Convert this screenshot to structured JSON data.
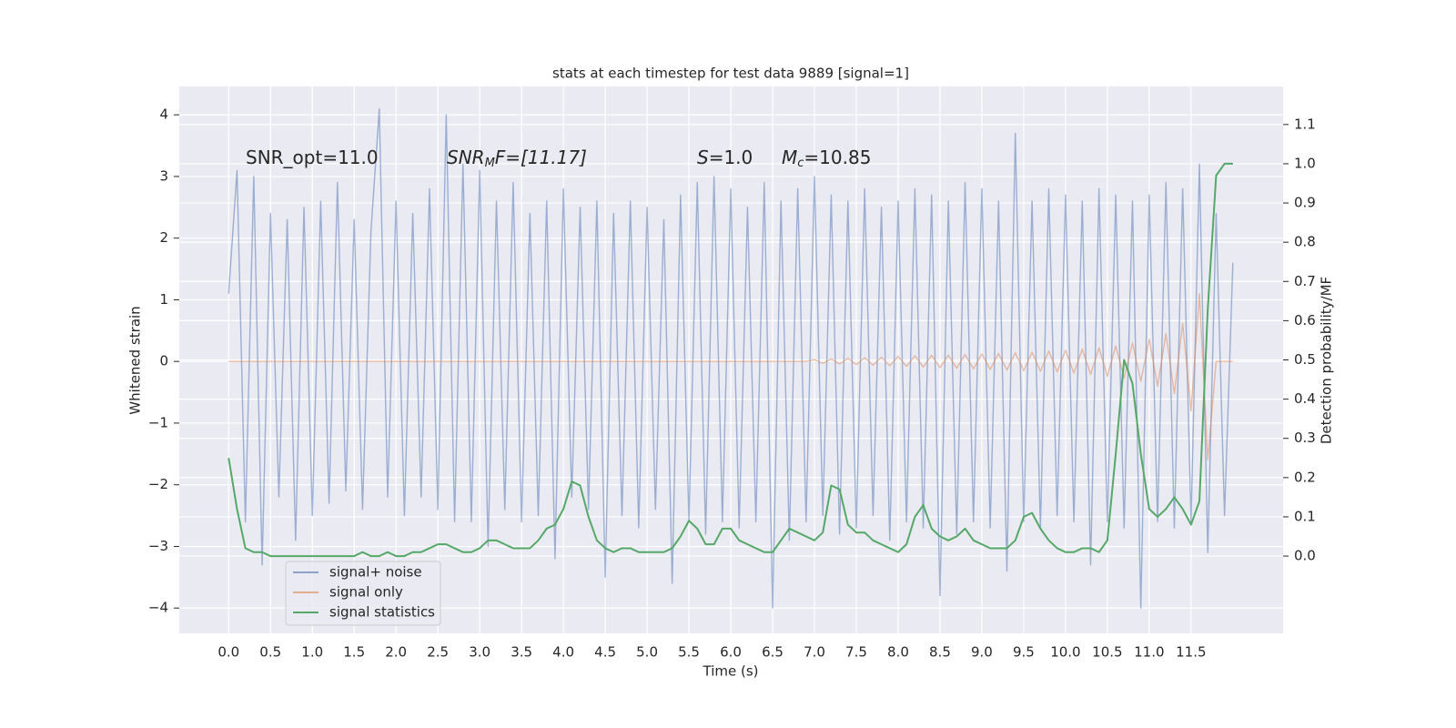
{
  "chart_data": {
    "type": "line",
    "title": "stats at each timestep for test data 9889 [signal=1]",
    "xlabel": "Time (s)",
    "ylabel": "Whitened strain",
    "y2label": "Detection probability/MF",
    "annotations": [
      [
        "SNR_opt=11.0"
      ],
      [
        "SNR",
        "M",
        "F=[11.17]"
      ],
      [
        "S",
        "=1.0"
      ],
      [
        "M",
        "c",
        "=10.85"
      ]
    ],
    "legend": "lower left",
    "grid": true,
    "background": "#eaeaf2",
    "xlim": [
      -0.59,
      12.6
    ],
    "xticks": [
      {
        "value": 0,
        "label": "0.0"
      },
      0.5,
      {
        "value": 1,
        "label": "1.0"
      },
      1.5,
      {
        "value": 2,
        "label": "2.0"
      },
      2.5,
      {
        "value": 3,
        "label": "3.0"
      },
      3.5,
      {
        "value": 4,
        "label": "4.0"
      },
      4.5,
      {
        "value": 5,
        "label": "5.0"
      },
      5.5,
      {
        "value": 6,
        "label": "6.0"
      },
      6.5,
      {
        "value": 7,
        "label": "7.0"
      },
      7.5,
      {
        "value": 8,
        "label": "8.0"
      },
      8.5,
      {
        "value": 9,
        "label": "9.0"
      },
      9.5,
      {
        "value": 10,
        "label": "10.0"
      },
      10.5,
      {
        "value": 11,
        "label": "11.0"
      },
      11.5
    ],
    "ylim": [
      -4.41,
      4.46
    ],
    "yticks": [
      {
        "value": -4,
        "label": "−4"
      },
      {
        "value": -3,
        "label": "−3"
      },
      {
        "value": -2,
        "label": "−2"
      },
      {
        "value": -1,
        "label": "−1"
      },
      0,
      1,
      2,
      3,
      4
    ],
    "y2lim": [
      -0.197,
      1.197
    ],
    "y2ticks": [
      {
        "value": 0,
        "label": "0.0"
      },
      0.1,
      0.2,
      0.3,
      0.4,
      0.5,
      0.6,
      0.7,
      0.8,
      0.9,
      {
        "value": 1,
        "label": "1.0"
      },
      1.1
    ],
    "x": [
      0.0,
      0.1,
      0.2,
      0.3,
      0.4,
      0.5,
      0.6,
      0.7,
      0.8,
      0.9,
      1.0,
      1.1,
      1.2,
      1.3,
      1.4,
      1.5,
      1.6,
      1.7,
      1.8,
      1.9,
      2.0,
      2.1,
      2.2,
      2.3,
      2.4,
      2.5,
      2.6,
      2.7,
      2.8,
      2.9,
      3.0,
      3.1,
      3.2,
      3.3,
      3.4,
      3.5,
      3.6,
      3.7,
      3.8,
      3.9,
      4.0,
      4.1,
      4.2,
      4.3,
      4.4,
      4.5,
      4.6,
      4.7,
      4.8,
      4.9,
      5.0,
      5.1,
      5.2,
      5.3,
      5.4,
      5.5,
      5.6,
      5.7,
      5.8,
      5.9,
      6.0,
      6.1,
      6.2,
      6.3,
      6.4,
      6.5,
      6.6,
      6.7,
      6.8,
      6.9,
      7.0,
      7.1,
      7.2,
      7.3,
      7.4,
      7.5,
      7.6,
      7.7,
      7.8,
      7.9,
      8.0,
      8.1,
      8.2,
      8.3,
      8.4,
      8.5,
      8.6,
      8.7,
      8.8,
      8.9,
      9.0,
      9.1,
      9.2,
      9.3,
      9.4,
      9.5,
      9.6,
      9.7,
      9.8,
      9.9,
      10.0,
      10.1,
      10.2,
      10.3,
      10.4,
      10.5,
      10.6,
      10.7,
      10.8,
      10.9,
      11.0,
      11.1,
      11.2,
      11.3,
      11.4,
      11.5,
      11.6,
      11.7,
      11.8,
      11.9,
      12.0
    ],
    "series": [
      {
        "name": "signal+ noise",
        "color": "#4c72b0",
        "values": [
          1.1,
          3.1,
          -2.6,
          3.0,
          -3.3,
          2.4,
          -2.2,
          2.3,
          -2.9,
          2.5,
          -2.5,
          2.6,
          -2.3,
          2.9,
          -2.1,
          2.3,
          -2.4,
          2.1,
          4.1,
          -2.2,
          2.6,
          -2.5,
          2.4,
          -2.2,
          2.8,
          -2.4,
          4.0,
          -2.6,
          3.2,
          -2.6,
          3.1,
          -3.0,
          2.6,
          -2.4,
          2.9,
          -2.6,
          2.4,
          -2.5,
          2.6,
          -3.2,
          2.8,
          -2.2,
          2.5,
          -2.4,
          2.6,
          -3.5,
          2.4,
          -2.5,
          2.6,
          -2.7,
          2.5,
          -2.4,
          2.3,
          -3.6,
          2.7,
          -2.6,
          2.9,
          -2.8,
          3.0,
          -2.6,
          2.8,
          -2.7,
          2.5,
          -2.6,
          2.9,
          -4.0,
          2.6,
          -2.9,
          2.8,
          -2.6,
          3.0,
          -2.5,
          2.7,
          -2.8,
          2.6,
          -2.7,
          2.8,
          -2.5,
          2.5,
          -2.9,
          2.6,
          -2.6,
          2.8,
          -2.7,
          2.7,
          -3.8,
          2.6,
          -2.8,
          2.9,
          -2.6,
          2.8,
          -2.7,
          2.6,
          -3.4,
          3.7,
          -2.6,
          2.6,
          -2.7,
          2.8,
          -2.5,
          2.7,
          -2.6,
          2.6,
          -3.3,
          2.8,
          -2.6,
          2.7,
          -2.7,
          2.6,
          -4.0,
          2.7,
          -2.6,
          2.9,
          -2.7,
          2.8,
          -2.6,
          3.2,
          -3.1,
          2.4,
          -2.5,
          1.6
        ]
      },
      {
        "name": "signal only",
        "color": "#dd8452",
        "values": [
          0,
          0,
          0,
          0,
          0,
          0,
          0,
          0,
          0,
          0,
          0,
          0,
          0,
          0,
          0,
          0,
          0,
          0,
          0,
          0,
          0,
          0,
          0,
          0,
          0,
          0,
          0,
          0,
          0,
          0,
          0,
          0,
          0,
          0,
          0,
          0,
          0,
          0,
          0,
          0,
          0,
          0,
          0,
          0,
          0,
          0,
          0,
          0,
          0,
          0,
          0,
          0,
          0,
          0,
          0,
          0,
          0,
          0,
          0,
          0,
          0,
          0,
          0,
          0,
          0,
          0,
          0,
          0,
          0,
          0,
          0.03,
          -0.03,
          0.04,
          -0.04,
          0.05,
          -0.05,
          0.06,
          -0.06,
          0.07,
          -0.07,
          0.08,
          -0.08,
          0.09,
          -0.09,
          0.1,
          -0.1,
          0.1,
          -0.11,
          0.11,
          -0.12,
          0.12,
          -0.13,
          0.13,
          -0.14,
          0.14,
          -0.15,
          0.15,
          -0.16,
          0.17,
          -0.17,
          0.18,
          -0.19,
          0.2,
          -0.21,
          0.22,
          -0.24,
          0.25,
          -0.27,
          0.3,
          -0.32,
          0.36,
          -0.4,
          0.45,
          -0.52,
          0.62,
          -0.8,
          1.1,
          -1.6,
          0.0,
          0.0,
          0.0
        ]
      },
      {
        "name": "signal statistics",
        "color": "#55a868",
        "axis": "y2",
        "values": [
          0.25,
          0.12,
          0.02,
          0.01,
          0.01,
          0.0,
          0.0,
          0.0,
          0.0,
          0.0,
          0.0,
          0.0,
          0.0,
          0.0,
          0.0,
          0.0,
          0.01,
          0.0,
          0.0,
          0.01,
          0.0,
          0.0,
          0.01,
          0.01,
          0.02,
          0.03,
          0.03,
          0.02,
          0.01,
          0.01,
          0.02,
          0.04,
          0.04,
          0.03,
          0.02,
          0.02,
          0.02,
          0.04,
          0.07,
          0.08,
          0.12,
          0.19,
          0.18,
          0.1,
          0.04,
          0.02,
          0.01,
          0.02,
          0.02,
          0.01,
          0.01,
          0.01,
          0.01,
          0.02,
          0.05,
          0.09,
          0.07,
          0.03,
          0.03,
          0.07,
          0.07,
          0.04,
          0.03,
          0.02,
          0.01,
          0.01,
          0.04,
          0.07,
          0.06,
          0.05,
          0.04,
          0.06,
          0.18,
          0.17,
          0.08,
          0.06,
          0.06,
          0.04,
          0.03,
          0.02,
          0.01,
          0.03,
          0.1,
          0.13,
          0.07,
          0.05,
          0.04,
          0.05,
          0.07,
          0.04,
          0.03,
          0.02,
          0.02,
          0.02,
          0.04,
          0.1,
          0.11,
          0.07,
          0.04,
          0.02,
          0.01,
          0.01,
          0.02,
          0.02,
          0.01,
          0.04,
          0.26,
          0.5,
          0.44,
          0.26,
          0.12,
          0.1,
          0.12,
          0.15,
          0.12,
          0.08,
          0.14,
          0.63,
          0.97,
          1.0,
          1.0
        ]
      }
    ]
  }
}
